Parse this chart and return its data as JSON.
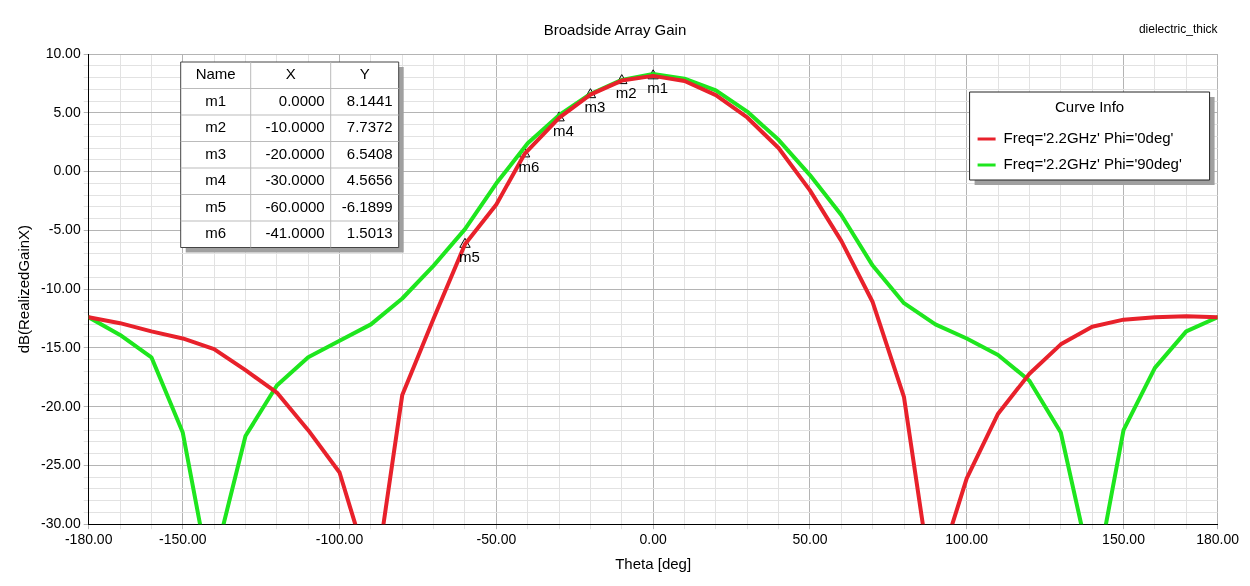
{
  "chart_data": {
    "type": "line",
    "title": "Broadside Array Gain",
    "xlabel": "Theta [deg]",
    "ylabel": "dB(RealizedGainX)",
    "legend_title": "Curve Info",
    "legend": "top right",
    "grid": true,
    "line_style": "solid",
    "marker": "none",
    "annotations": [
      "dielectric_thick",
      "Name",
      "X",
      "Y",
      "m1",
      "0.0000",
      "8.1441",
      "m2",
      "-10.0000",
      "7.7372",
      "m3",
      "-20.0000",
      "6.5408",
      "m4",
      "-30.0000",
      "4.5656",
      "m5",
      "-60.0000",
      "-6.1899",
      "m6",
      "-41.0000",
      "1.5013"
    ],
    "xlim": [
      -180,
      180
    ],
    "ylim": [
      -30,
      10
    ],
    "xticks": [
      {
        "value": -180,
        "label": "-180.00"
      },
      {
        "value": -170,
        "label": null
      },
      {
        "value": -160,
        "label": null
      },
      {
        "value": -150,
        "label": "-150.00"
      },
      {
        "value": -140,
        "label": null
      },
      {
        "value": -130,
        "label": null
      },
      {
        "value": -120,
        "label": null
      },
      {
        "value": -110,
        "label": null
      },
      {
        "value": -100,
        "label": "-100.00"
      },
      {
        "value": -90,
        "label": null
      },
      {
        "value": -80,
        "label": null
      },
      {
        "value": -70,
        "label": null
      },
      {
        "value": -60,
        "label": null
      },
      {
        "value": -50,
        "label": "-50.00"
      },
      {
        "value": -40,
        "label": null
      },
      {
        "value": -30,
        "label": null
      },
      {
        "value": -20,
        "label": null
      },
      {
        "value": -10,
        "label": null
      },
      {
        "value": 0,
        "label": "0.00"
      },
      {
        "value": 10,
        "label": null
      },
      {
        "value": 20,
        "label": null
      },
      {
        "value": 30,
        "label": null
      },
      {
        "value": 40,
        "label": null
      },
      {
        "value": 50,
        "label": "50.00"
      },
      {
        "value": 60,
        "label": null
      },
      {
        "value": 70,
        "label": null
      },
      {
        "value": 80,
        "label": null
      },
      {
        "value": 90,
        "label": null
      },
      {
        "value": 100,
        "label": "100.00"
      },
      {
        "value": 110,
        "label": null
      },
      {
        "value": 120,
        "label": null
      },
      {
        "value": 130,
        "label": null
      },
      {
        "value": 140,
        "label": null
      },
      {
        "value": 150,
        "label": "150.00"
      },
      {
        "value": 160,
        "label": null
      },
      {
        "value": 170,
        "label": null
      },
      {
        "value": 180,
        "label": "180.00"
      }
    ],
    "yticks": [
      {
        "value": -30,
        "label": "-30.00"
      },
      {
        "value": -29,
        "label": null
      },
      {
        "value": -28,
        "label": null
      },
      {
        "value": -27,
        "label": null
      },
      {
        "value": -26,
        "label": null
      },
      {
        "value": -25,
        "label": "-25.00"
      },
      {
        "value": -24,
        "label": null
      },
      {
        "value": -23,
        "label": null
      },
      {
        "value": -22,
        "label": null
      },
      {
        "value": -21,
        "label": null
      },
      {
        "value": -20,
        "label": "-20.00"
      },
      {
        "value": -19,
        "label": null
      },
      {
        "value": -18,
        "label": null
      },
      {
        "value": -17,
        "label": null
      },
      {
        "value": -16,
        "label": null
      },
      {
        "value": -15,
        "label": "-15.00"
      },
      {
        "value": -14,
        "label": null
      },
      {
        "value": -13,
        "label": null
      },
      {
        "value": -12,
        "label": null
      },
      {
        "value": -11,
        "label": null
      },
      {
        "value": -10,
        "label": "-10.00"
      },
      {
        "value": -9,
        "label": null
      },
      {
        "value": -8,
        "label": null
      },
      {
        "value": -7,
        "label": null
      },
      {
        "value": -6,
        "label": null
      },
      {
        "value": -5,
        "label": "-5.00"
      },
      {
        "value": -4,
        "label": null
      },
      {
        "value": -3,
        "label": null
      },
      {
        "value": -2,
        "label": null
      },
      {
        "value": -1,
        "label": null
      },
      {
        "value": 0,
        "label": "0.00"
      },
      {
        "value": 1,
        "label": null
      },
      {
        "value": 2,
        "label": null
      },
      {
        "value": 3,
        "label": null
      },
      {
        "value": 4,
        "label": null
      },
      {
        "value": 5,
        "label": "5.00"
      },
      {
        "value": 6,
        "label": null
      },
      {
        "value": 7,
        "label": null
      },
      {
        "value": 8,
        "label": null
      },
      {
        "value": 9,
        "label": null
      },
      {
        "value": 10,
        "label": "10.00"
      }
    ],
    "series": [
      {
        "name": "Freq='2.2GHz' Phi='0deg'",
        "color": "#e8212b",
        "x": [
          -180,
          -170,
          -160,
          -150,
          -140,
          -130,
          -120,
          -110,
          -100,
          -95,
          -91,
          -86,
          -80,
          -70,
          -60,
          -50,
          -41,
          -30,
          -20,
          -10,
          0,
          10,
          20,
          30,
          40,
          50,
          60,
          70,
          80,
          86,
          91,
          95.4,
          100,
          110,
          120,
          130,
          140,
          150,
          160,
          170,
          180
        ],
        "values": [
          -12.4,
          -12.9,
          -13.6,
          -14.2,
          -15.1,
          -16.9,
          -18.8,
          -22,
          -25.6,
          -30,
          null,
          -30,
          -19,
          -12.5,
          -6.19,
          -2.8,
          1.5,
          4.57,
          6.54,
          7.74,
          8.14,
          7.7,
          6.5,
          4.6,
          2,
          -1.6,
          -5.9,
          -11.1,
          -19.2,
          -30,
          null,
          -30,
          -26.1,
          -20.6,
          -17.2,
          -14.7,
          -13.2,
          -12.6,
          -12.4,
          -12.3,
          -12.4
        ]
      },
      {
        "name": "Freq='2.2GHz' Phi='90deg'",
        "color": "#1ee61e",
        "x": [
          -180,
          -170,
          -160,
          -150,
          -144.5,
          -141,
          -137,
          -130,
          -120,
          -110,
          -100,
          -90,
          -80,
          -70,
          -60,
          -50,
          -40,
          -30,
          -20,
          -10,
          0,
          10,
          20,
          30,
          40,
          50,
          60,
          70,
          80,
          90,
          100,
          110,
          120,
          130,
          136.5,
          140,
          144.4,
          150,
          160,
          170,
          180
        ],
        "values": [
          -12.4,
          -13.9,
          -15.8,
          -22.2,
          -30,
          null,
          -30,
          -22.5,
          -18.2,
          -15.8,
          -14.4,
          -13,
          -10.8,
          -8,
          -4.9,
          -1,
          2.4,
          4.8,
          6.6,
          7.8,
          8.3,
          7.9,
          6.9,
          5.1,
          2.7,
          -0.3,
          -3.7,
          -8,
          -11.2,
          -13,
          -14.2,
          -15.6,
          -17.8,
          -22.2,
          -30,
          null,
          -30,
          -22,
          -16.7,
          -13.6,
          -12.4
        ]
      },
      {
        "type": "scatter",
        "marker": "triangle",
        "color": "#000000",
        "x": [
          0,
          -10,
          -20,
          -30,
          -60,
          -41
        ],
        "values": [
          8.1441,
          7.7372,
          6.5408,
          4.5656,
          -6.1899,
          1.5013
        ],
        "value_labels": [
          "m1",
          "m2",
          "m3",
          "m4",
          "m5",
          "m6"
        ]
      }
    ]
  }
}
